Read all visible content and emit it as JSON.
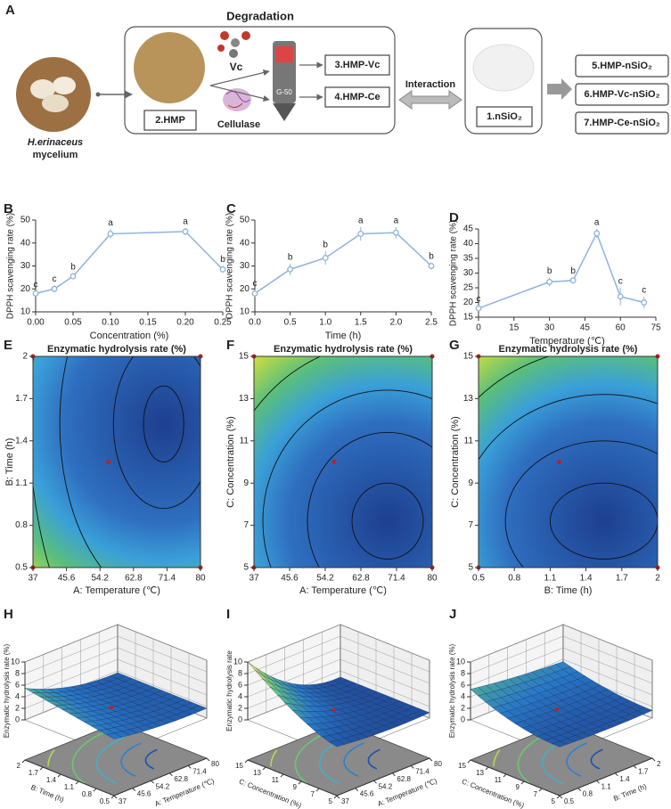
{
  "panel_a": {
    "panel": "A",
    "title": "Degradation",
    "source_name": "H.erinaceus",
    "source_sub": "mycelium",
    "hmp": "2.HMP",
    "vc": "Vc",
    "cellulase": "Cellulase",
    "column": "G-50",
    "product1": "3.HMP-Vc",
    "product2": "4.HMP-Ce",
    "interaction": "Interaction",
    "nsio2": "1.nSiO₂",
    "outputs": [
      "5.HMP-nSiO₂",
      "6.HMP-Vc-nSiO₂",
      "7.HMP-Ce-nSiO₂"
    ]
  },
  "chart_data": [
    {
      "type": "line",
      "panel": "B",
      "xlabel": "Concentration (%)",
      "ylabel": "DPPH scavenging rate (%)",
      "color": "#8fb3dc",
      "x": [
        0,
        0.025,
        0.05,
        0.1,
        0.2,
        0.25
      ],
      "values": [
        18,
        20,
        25.5,
        44,
        45,
        28.5
      ],
      "errors": [
        1,
        1.5,
        1.2,
        2,
        1.5,
        1.5
      ],
      "letters": [
        "c",
        "c",
        "b",
        "a",
        "a",
        "b"
      ],
      "xlim": [
        0,
        0.25
      ],
      "xticks": [
        {
          "value": 0,
          "label": "0.00"
        },
        {
          "value": 0.05,
          "label": "0.05"
        },
        {
          "value": 0.1,
          "label": "0.10"
        },
        {
          "value": 0.15,
          "label": "0.15"
        },
        {
          "value": 0.2,
          "label": "0.20"
        },
        {
          "value": 0.25,
          "label": "0.25"
        }
      ],
      "ylim": [
        10,
        50
      ],
      "yticks": [
        10,
        20,
        30,
        40,
        50
      ]
    },
    {
      "type": "line",
      "panel": "C",
      "xlabel": "Time (h)",
      "ylabel": "DPPH scavenging rate (%)",
      "color": "#8fb3dc",
      "x": [
        0,
        0.5,
        1,
        1.5,
        2,
        2.5
      ],
      "values": [
        18,
        28.5,
        33.5,
        44,
        44.5,
        30
      ],
      "errors": [
        1.5,
        2.5,
        3,
        3,
        2.5,
        1.5
      ],
      "letters": [
        "c",
        "b",
        "b",
        "a",
        "a",
        "b"
      ],
      "xlim": [
        0,
        2.5
      ],
      "xticks": [
        {
          "value": 0,
          "label": "0.0"
        },
        0.5,
        {
          "value": 1,
          "label": "1.0"
        },
        1.5,
        {
          "value": 2,
          "label": "2.0"
        },
        2.5
      ],
      "ylim": [
        10,
        50
      ],
      "yticks": [
        10,
        20,
        30,
        40,
        50
      ]
    },
    {
      "type": "line",
      "panel": "D",
      "xlabel": "Temperature (℃)",
      "ylabel": "DPPH scavenging rate (%)",
      "color": "#8fb3dc",
      "x": [
        0,
        30,
        40,
        50,
        60,
        70
      ],
      "values": [
        18,
        27,
        27.5,
        43.5,
        22,
        20
      ],
      "errors": [
        1,
        1.5,
        1,
        1.5,
        3,
        2
      ],
      "letters": [
        "c",
        "b",
        "b",
        "a",
        "c",
        "c"
      ],
      "xlim": [
        0,
        75
      ],
      "xticks": [
        0,
        15,
        30,
        45,
        60,
        75
      ],
      "ylim": [
        15,
        45
      ],
      "yticks": [
        15,
        20,
        25,
        30,
        35,
        40,
        45
      ]
    },
    {
      "type": "contour",
      "panel": "E",
      "title": "Enzymatic hydrolysis rate (%)",
      "xlabel": "A: Temperature (℃)",
      "ylabel": "B: Time (h)",
      "xlim": [
        37,
        80
      ],
      "xticks": [
        37,
        45.6,
        54.2,
        62.8,
        71.4,
        80
      ],
      "ylim": [
        0.5,
        2
      ],
      "yticks": [
        0.5,
        0.8,
        1.1,
        1.4,
        1.7,
        2
      ]
    },
    {
      "type": "contour",
      "panel": "F",
      "title": "Enzymatic hydrolysis rate (%)",
      "xlabel": "A: Temperature (℃)",
      "ylabel": "C: Concentration (%)",
      "xlim": [
        37,
        80
      ],
      "xticks": [
        37,
        45.6,
        54.2,
        62.8,
        71.4,
        80
      ],
      "ylim": [
        5,
        15
      ],
      "yticks": [
        5,
        7,
        9,
        11,
        13,
        15
      ]
    },
    {
      "type": "contour",
      "panel": "G",
      "title": "Enzymatic hydrolysis rate (%)",
      "xlabel": "B: Time (h)",
      "ylabel": "C: Concentration (%)",
      "xlim": [
        0.5,
        2
      ],
      "xticks": [
        0.5,
        0.8,
        1.1,
        1.4,
        1.7,
        2
      ],
      "ylim": [
        5,
        15
      ],
      "yticks": [
        5,
        7,
        9,
        11,
        13,
        15
      ]
    },
    {
      "type": "surface",
      "panel": "H",
      "xlabel": "A: Temperature (℃)",
      "ylabel": "B: Time (h)",
      "zlabel": "Enzymatic hydrolysis rate (%)",
      "xlim": [
        37,
        80
      ],
      "xticks": [
        37,
        45.6,
        54.2,
        62.8,
        71.4,
        80
      ],
      "ylim": [
        0.5,
        2
      ],
      "yticks": [
        0.5,
        0.8,
        1.1,
        1.4,
        1.7,
        2
      ],
      "zlim": [
        0,
        10
      ],
      "zticks": [
        0,
        2,
        4,
        6,
        8,
        10
      ]
    },
    {
      "type": "surface",
      "panel": "I",
      "xlabel": "A: Temperature (℃)",
      "ylabel": "C: Concentration (%)",
      "zlabel": "Enzymatic hydrolysis rate",
      "xlim": [
        37,
        80
      ],
      "xticks": [
        37,
        45.6,
        54.2,
        62.8,
        71.4,
        80
      ],
      "ylim": [
        5,
        15
      ],
      "yticks": [
        5,
        7,
        9,
        11,
        13,
        15
      ],
      "zlim": [
        0,
        10
      ],
      "zticks": [
        0,
        2,
        4,
        6,
        8,
        10
      ]
    },
    {
      "type": "surface",
      "panel": "J",
      "xlabel": "B: Time (h)",
      "ylabel": "C: Concentration (%)",
      "zlabel": "Enzymatic hydrolysis rate (%)",
      "xlim": [
        0.5,
        2
      ],
      "xticks": [
        0.5,
        0.8,
        1.1,
        1.4,
        1.7,
        2
      ],
      "ylim": [
        5,
        15
      ],
      "yticks": [
        5,
        7,
        9,
        11,
        13,
        15
      ],
      "zlim": [
        0,
        10
      ],
      "zticks": [
        0,
        2,
        4,
        6,
        8,
        10
      ]
    }
  ]
}
